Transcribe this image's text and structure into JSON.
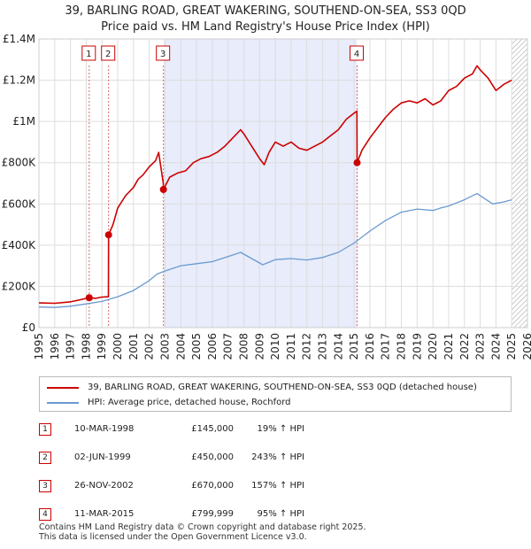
{
  "title": {
    "line1": "39, BARLING ROAD, GREAT WAKERING, SOUTHEND-ON-SEA, SS3 0QD",
    "line2": "Price paid vs. HM Land Registry's House Price Index (HPI)"
  },
  "colors": {
    "property": "#cc0000",
    "hpi": "#6a9ad0",
    "shade": "#e8ecfb",
    "grid": "#dddddd",
    "vline": "#dd6666"
  },
  "chart_data": {
    "type": "line",
    "title": "39, BARLING ROAD, GREAT WAKERING, SOUTHEND-ON-SEA, SS3 0QD — Price paid vs. HM Land Registry's House Price Index (HPI)",
    "xlim": [
      1995,
      2026
    ],
    "ylim": [
      0,
      1400000
    ],
    "x_ticks": [
      1995,
      1996,
      1997,
      1998,
      1999,
      2000,
      2001,
      2002,
      2003,
      2004,
      2005,
      2006,
      2007,
      2008,
      2009,
      2010,
      2011,
      2012,
      2013,
      2014,
      2015,
      2016,
      2017,
      2018,
      2019,
      2020,
      2021,
      2022,
      2023,
      2024,
      2025,
      2026
    ],
    "y_ticks": [
      {
        "value": 0,
        "label": "£0"
      },
      {
        "value": 200000,
        "label": "£200K"
      },
      {
        "value": 400000,
        "label": "£400K"
      },
      {
        "value": 600000,
        "label": "£600K"
      },
      {
        "value": 800000,
        "label": "£800K"
      },
      {
        "value": 1000000,
        "label": "£1M"
      },
      {
        "value": 1200000,
        "label": "£1.2M"
      },
      {
        "value": 1400000,
        "label": "£1.4M"
      }
    ],
    "shaded_ranges": [
      [
        2002.9,
        2015.19
      ]
    ],
    "forecast_from": 2025.0,
    "series": [
      {
        "name": "39, BARLING ROAD, GREAT WAKERING, SOUTHEND-ON-SEA, SS3 0QD (detached house)",
        "x": [
          1995.0,
          1996.0,
          1997.0,
          1997.5,
          1998.19,
          1998.6,
          1999.0,
          1999.41,
          1999.42,
          1999.7,
          2000.0,
          2000.5,
          2001.0,
          2001.3,
          2001.6,
          2002.0,
          2002.4,
          2002.6,
          2002.89,
          2002.9,
          2003.3,
          2003.8,
          2004.3,
          2004.8,
          2005.3,
          2005.8,
          2006.3,
          2006.8,
          2007.3,
          2007.8,
          2008.0,
          2008.5,
          2009.0,
          2009.3,
          2009.6,
          2010.0,
          2010.5,
          2011.0,
          2011.5,
          2012.0,
          2012.5,
          2013.0,
          2013.5,
          2014.0,
          2014.5,
          2015.0,
          2015.18,
          2015.19,
          2015.5,
          2016.0,
          2016.5,
          2017.0,
          2017.5,
          2018.0,
          2018.5,
          2019.0,
          2019.5,
          2020.0,
          2020.5,
          2021.0,
          2021.5,
          2022.0,
          2022.5,
          2022.8,
          2023.0,
          2023.5,
          2024.0,
          2024.5,
          2025.0
        ],
        "values": [
          120000,
          118000,
          125000,
          133000,
          145000,
          142000,
          148000,
          150000,
          450000,
          500000,
          580000,
          640000,
          680000,
          720000,
          740000,
          780000,
          810000,
          850000,
          700000,
          670000,
          730000,
          750000,
          760000,
          800000,
          820000,
          830000,
          850000,
          880000,
          920000,
          960000,
          940000,
          880000,
          820000,
          790000,
          850000,
          900000,
          880000,
          900000,
          870000,
          860000,
          880000,
          900000,
          930000,
          960000,
          1010000,
          1040000,
          1050000,
          799999,
          860000,
          920000,
          970000,
          1020000,
          1060000,
          1090000,
          1100000,
          1090000,
          1110000,
          1080000,
          1100000,
          1150000,
          1170000,
          1210000,
          1230000,
          1270000,
          1250000,
          1210000,
          1150000,
          1180000,
          1200000
        ]
      },
      {
        "name": "HPI: Average price, detached house, Rochford",
        "x": [
          1995.0,
          1996.0,
          1997.0,
          1998.0,
          1999.0,
          2000.0,
          2001.0,
          2002.0,
          2002.5,
          2003.0,
          2004.0,
          2005.0,
          2006.0,
          2007.0,
          2007.8,
          2008.5,
          2009.2,
          2010.0,
          2011.0,
          2012.0,
          2013.0,
          2014.0,
          2015.0,
          2016.0,
          2017.0,
          2018.0,
          2019.0,
          2020.0,
          2020.5,
          2021.0,
          2022.0,
          2022.8,
          2023.2,
          2023.8,
          2024.5,
          2025.0
        ],
        "values": [
          100000,
          98000,
          104000,
          115000,
          127000,
          150000,
          180000,
          228000,
          260000,
          275000,
          300000,
          310000,
          320000,
          345000,
          365000,
          335000,
          305000,
          330000,
          335000,
          328000,
          340000,
          365000,
          410000,
          468000,
          520000,
          560000,
          575000,
          568000,
          580000,
          590000,
          620000,
          650000,
          630000,
          600000,
          610000,
          620000
        ]
      }
    ],
    "sales": [
      {
        "label": "1",
        "x": 1998.19,
        "value": 145000
      },
      {
        "label": "2",
        "x": 1999.42,
        "value": 450000
      },
      {
        "label": "3",
        "x": 2002.9,
        "value": 670000
      },
      {
        "label": "4",
        "x": 2015.19,
        "value": 799999
      }
    ]
  },
  "legend": {
    "property": "39, BARLING ROAD, GREAT WAKERING, SOUTHEND-ON-SEA, SS3 0QD (detached house)",
    "hpi": "HPI: Average price, detached house, Rochford"
  },
  "transactions": [
    {
      "num": "1",
      "date": "10-MAR-1998",
      "price": "£145,000",
      "hpi": "19% ↑ HPI"
    },
    {
      "num": "2",
      "date": "02-JUN-1999",
      "price": "£450,000",
      "hpi": "243% ↑ HPI"
    },
    {
      "num": "3",
      "date": "26-NOV-2002",
      "price": "£670,000",
      "hpi": "157% ↑ HPI"
    },
    {
      "num": "4",
      "date": "11-MAR-2015",
      "price": "£799,999",
      "hpi": "95% ↑ HPI"
    }
  ],
  "footer": {
    "line1": "Contains HM Land Registry data © Crown copyright and database right 2025.",
    "line2": "This data is licensed under the Open Government Licence v3.0."
  }
}
